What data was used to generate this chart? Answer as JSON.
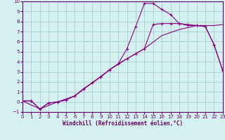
{
  "xlabel": "Windchill (Refroidissement éolien,°C)",
  "background_color": "#d4f0f0",
  "grid_color": "#aacccc",
  "line_color": "#880088",
  "xlim": [
    0,
    23
  ],
  "ylim": [
    -1,
    10
  ],
  "xticks": [
    0,
    1,
    2,
    3,
    4,
    5,
    6,
    7,
    8,
    9,
    10,
    11,
    12,
    13,
    14,
    15,
    16,
    17,
    18,
    19,
    20,
    21,
    22,
    23
  ],
  "yticks": [
    -1,
    0,
    1,
    2,
    3,
    4,
    5,
    6,
    7,
    8,
    9,
    10
  ],
  "line1_x": [
    0,
    1,
    2,
    3,
    4,
    5,
    6,
    7,
    8,
    9,
    10,
    11,
    12,
    13,
    14,
    15,
    16,
    17,
    18,
    19,
    20,
    21,
    22,
    23
  ],
  "line1_y": [
    0.1,
    0.1,
    -0.7,
    -0.1,
    0.0,
    0.2,
    0.6,
    1.3,
    1.9,
    2.5,
    3.2,
    3.8,
    5.3,
    7.5,
    9.8,
    9.8,
    9.2,
    8.7,
    7.8,
    7.6,
    7.6,
    7.5,
    5.7,
    3.1
  ],
  "line2_x": [
    0,
    1,
    2,
    3,
    4,
    5,
    6,
    7,
    8,
    9,
    10,
    11,
    12,
    13,
    14,
    15,
    16,
    17,
    18,
    19,
    20,
    21,
    22,
    23
  ],
  "line2_y": [
    0.1,
    0.1,
    -0.7,
    -0.1,
    0.0,
    0.2,
    0.6,
    1.3,
    1.9,
    2.5,
    3.2,
    3.8,
    4.3,
    4.8,
    5.3,
    7.7,
    7.8,
    7.8,
    7.8,
    7.7,
    7.6,
    7.5,
    5.7,
    3.1
  ],
  "line3_x": [
    0,
    2,
    4,
    6,
    8,
    10,
    12,
    14,
    16,
    18,
    20,
    22,
    23
  ],
  "line3_y": [
    0.1,
    -0.7,
    0.0,
    0.6,
    1.9,
    3.2,
    4.3,
    5.3,
    6.6,
    7.2,
    7.6,
    7.6,
    7.7
  ]
}
